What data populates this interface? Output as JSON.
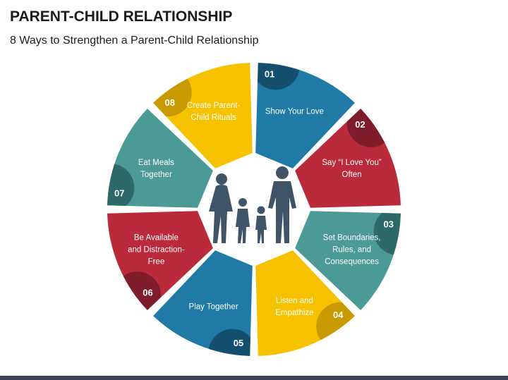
{
  "header": {
    "title": "PARENT-CHILD RELATIONSHIP",
    "subtitle": "8 Ways to Strengthen a Parent-Child Relationship"
  },
  "segments": [
    {
      "number": "01",
      "label_lines": [
        "Show Your Love"
      ]
    },
    {
      "number": "02",
      "label_lines": [
        "Say “I Love You”",
        "Often"
      ]
    },
    {
      "number": "03",
      "label_lines": [
        "Set Boundaries,",
        "Rules, and",
        "Consequences"
      ]
    },
    {
      "number": "04",
      "label_lines": [
        "Listen and",
        "Empathize"
      ]
    },
    {
      "number": "05",
      "label_lines": [
        "Play Together"
      ]
    },
    {
      "number": "06",
      "label_lines": [
        "Be Available",
        "and Distraction-",
        "Free"
      ]
    },
    {
      "number": "07",
      "label_lines": [
        "Eat Meals",
        "Together"
      ]
    },
    {
      "number": "08",
      "label_lines": [
        "Create Parent-",
        "Child Rituals"
      ]
    }
  ]
}
